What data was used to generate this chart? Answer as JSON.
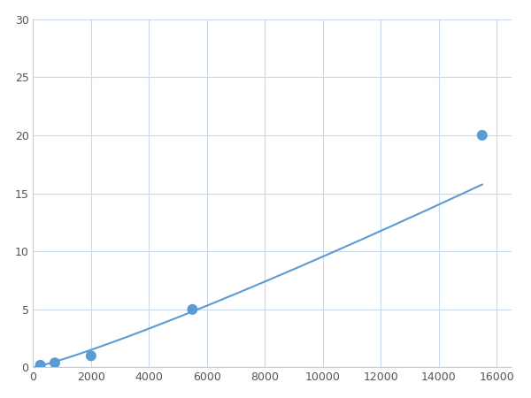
{
  "x_data": [
    250,
    750,
    2000,
    5500,
    15500
  ],
  "y_data": [
    0.2,
    0.4,
    1.0,
    5.0,
    20.0
  ],
  "line_color": "#5b9bd5",
  "marker_color": "#5b9bd5",
  "marker_size": 5,
  "xlim": [
    0,
    16500
  ],
  "ylim": [
    0,
    30
  ],
  "xticks": [
    0,
    2000,
    4000,
    6000,
    8000,
    10000,
    12000,
    14000,
    16000
  ],
  "yticks": [
    0,
    5,
    10,
    15,
    20,
    25,
    30
  ],
  "grid_color": "#c8d8e8",
  "background_color": "#ffffff",
  "linewidth": 1.5
}
